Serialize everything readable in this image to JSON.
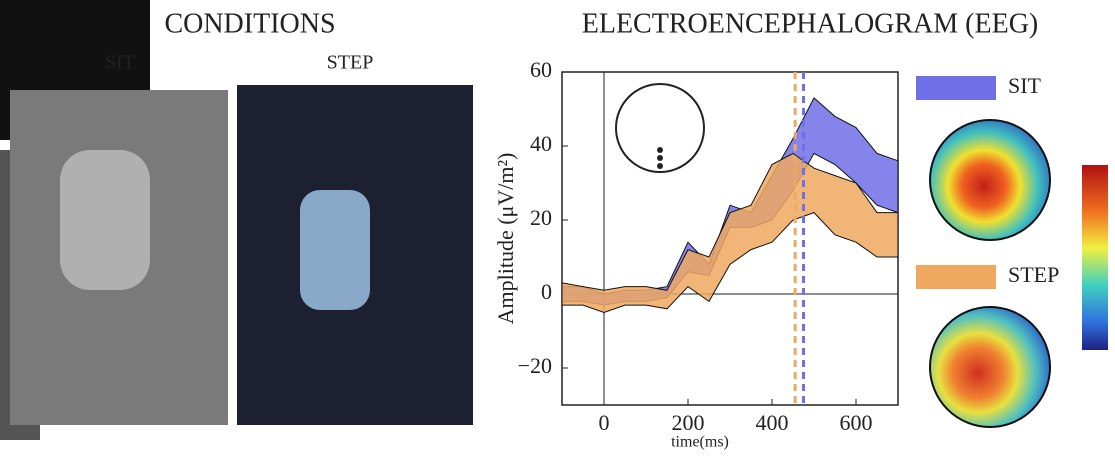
{
  "conditions": {
    "title": "CONDITIONS",
    "labels": [
      "SIT",
      "STEP"
    ]
  },
  "chart_data": {
    "type": "band",
    "title": "ELECTROENCEPHALOGRAM (EEG)",
    "x_label": "time(ms)",
    "y_label": "Amplitude (μV/m²)",
    "x": [
      -100,
      -50,
      0,
      50,
      100,
      150,
      200,
      250,
      300,
      350,
      400,
      450,
      500,
      550,
      600,
      650,
      700
    ],
    "series": [
      {
        "name": "SIT",
        "color": "#6f6fe8",
        "latency": 475,
        "low": [
          -2,
          -2,
          -3,
          -2,
          -2,
          -1,
          6,
          5,
          18,
          18,
          20,
          28,
          38,
          35,
          30,
          24,
          22
        ],
        "high": [
          2,
          2,
          0,
          1,
          1,
          2,
          14,
          8,
          24,
          22,
          32,
          42,
          53,
          48,
          45,
          38,
          36
        ]
      },
      {
        "name": "STEP",
        "color": "#f0a860",
        "latency": 455,
        "low": [
          -3,
          -3,
          -5,
          -3,
          -3,
          -4,
          2,
          -2,
          8,
          12,
          14,
          20,
          22,
          16,
          14,
          10,
          10
        ],
        "high": [
          3,
          2,
          1,
          2,
          2,
          1,
          12,
          10,
          22,
          24,
          35,
          38,
          34,
          32,
          30,
          22,
          22
        ]
      }
    ],
    "xlim": [
      -100,
      700
    ],
    "xticks": [
      0,
      200,
      400,
      600
    ],
    "ylim": [
      -30,
      60
    ],
    "yticks": [
      {
        "value": -20,
        "label": "−20"
      },
      0,
      20,
      40,
      60
    ]
  }
}
